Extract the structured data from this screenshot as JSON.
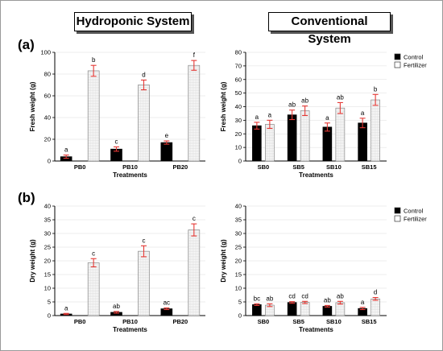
{
  "headers": {
    "left": "Hydroponic System",
    "right": "Conventional System"
  },
  "panels": {
    "a": "(a)",
    "b": "(b)"
  },
  "colors": {
    "control": "#000000",
    "fertilizer": "#ffffff",
    "error": "#e53935",
    "grid": "#dddddd"
  },
  "chart_data": [
    {
      "type": "bar",
      "categories": [
        "PB0",
        "PB10",
        "PB20"
      ],
      "series": [
        {
          "values": [
            4,
            11,
            17
          ],
          "errors": [
            1.5,
            2,
            1.5
          ],
          "letters": [
            "a",
            "c",
            "e"
          ]
        },
        {
          "values": [
            83,
            70,
            88
          ],
          "errors": [
            5,
            4.5,
            4.5
          ],
          "letters": [
            "b",
            "d",
            "f"
          ]
        }
      ],
      "xlabel": "Treatments",
      "ylabel": "Fresh weight (g)",
      "ylim": [
        0,
        100
      ],
      "yticks": [
        0,
        20,
        40,
        60,
        80,
        100
      ],
      "legend": false
    },
    {
      "type": "bar",
      "categories": [
        "SB0",
        "SB5",
        "SB10",
        "SB15"
      ],
      "series": [
        {
          "name": "Control",
          "values": [
            26,
            34,
            25,
            28
          ],
          "errors": [
            2.5,
            3.5,
            3,
            3.5
          ],
          "letters": [
            "a",
            "ab",
            "a",
            "a"
          ]
        },
        {
          "name": "Fertilizer",
          "values": [
            27,
            37,
            39,
            45
          ],
          "errors": [
            3,
            3.5,
            4,
            4
          ],
          "letters": [
            "a",
            "ab",
            "ab",
            "b"
          ]
        }
      ],
      "xlabel": "Treatments",
      "ylabel": "Fresh weight (g)",
      "ylim": [
        0,
        80
      ],
      "yticks": [
        0,
        10,
        20,
        30,
        40,
        50,
        60,
        70,
        80
      ],
      "legend": "top-right"
    },
    {
      "type": "bar",
      "categories": [
        "PB0",
        "PB10",
        "PB20"
      ],
      "series": [
        {
          "values": [
            0.6,
            1.2,
            2.5
          ],
          "errors": [
            0.2,
            0.3,
            0.3
          ],
          "letters": [
            "a",
            "ab",
            "ac"
          ]
        },
        {
          "values": [
            19.3,
            23.5,
            31.3
          ],
          "errors": [
            1.5,
            2,
            2.2
          ],
          "letters": [
            "c",
            "c",
            "c"
          ]
        }
      ],
      "xlabel": "Treatments",
      "ylabel": "Dry weight (g)",
      "ylim": [
        0,
        40
      ],
      "yticks": [
        0,
        5,
        10,
        15,
        20,
        25,
        30,
        35,
        40
      ],
      "legend": false
    },
    {
      "type": "bar",
      "categories": [
        "SB0",
        "SB5",
        "SB10",
        "SB15"
      ],
      "series": [
        {
          "name": "Control",
          "values": [
            4,
            4.8,
            3.4,
            2.6
          ],
          "errors": [
            0.3,
            0.3,
            0.3,
            0.4
          ],
          "letters": [
            "bc",
            "cd",
            "ab",
            "a"
          ]
        },
        {
          "name": "Fertilizer",
          "values": [
            3.8,
            4.8,
            4.7,
            6.1
          ],
          "errors": [
            0.5,
            0.4,
            0.5,
            0.5
          ],
          "letters": [
            "ab",
            "cd",
            "ab",
            "d"
          ]
        }
      ],
      "xlabel": "Treatments",
      "ylabel": "Dry weight (g)",
      "ylim": [
        0,
        40
      ],
      "yticks": [
        0,
        5,
        10,
        15,
        20,
        25,
        30,
        35,
        40
      ],
      "legend": "top-right"
    }
  ]
}
